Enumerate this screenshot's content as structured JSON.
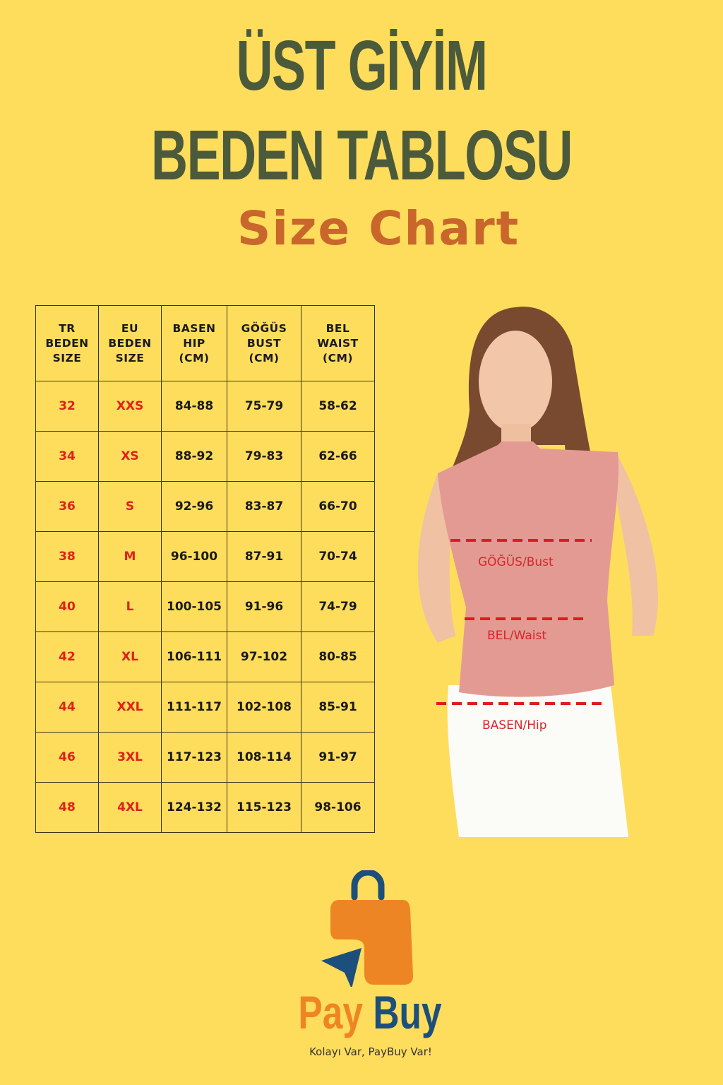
{
  "title": {
    "line1": "ÜST GİYİM",
    "line2": "BEDEN TABLOSU",
    "line3": "Size Chart"
  },
  "table": {
    "headers": [
      [
        "TR",
        "BEDEN",
        "SIZE"
      ],
      [
        "EU",
        "BEDEN",
        "SIZE"
      ],
      [
        "BASEN",
        "HIP",
        "(CM)"
      ],
      [
        "GÖĞÜS",
        "BUST",
        "(CM)"
      ],
      [
        "BEL",
        "WAIST",
        "(CM)"
      ]
    ],
    "rows": [
      [
        "32",
        "XXS",
        "84-88",
        "75-79",
        "58-62"
      ],
      [
        "34",
        "XS",
        "88-92",
        "79-83",
        "62-66"
      ],
      [
        "36",
        "S",
        "92-96",
        "83-87",
        "66-70"
      ],
      [
        "38",
        "M",
        "96-100",
        "87-91",
        "70-74"
      ],
      [
        "40",
        "L",
        "100-105",
        "91-96",
        "74-79"
      ],
      [
        "42",
        "XL",
        "106-111",
        "97-102",
        "80-85"
      ],
      [
        "44",
        "XXL",
        "111-117",
        "102-108",
        "85-91"
      ],
      [
        "46",
        "3XL",
        "117-123",
        "108-114",
        "91-97"
      ],
      [
        "48",
        "4XL",
        "124-132",
        "115-123",
        "98-106"
      ]
    ]
  },
  "measurements": {
    "bust": "GÖĞÜS/Bust",
    "waist": "BEL/Waist",
    "hip": "BASEN/Hip"
  },
  "logo": {
    "word1": "Pay",
    "word2": "Buy",
    "tagline": "Kolayı Var, PayBuy Var!"
  },
  "colors": {
    "background": "#fedd5c",
    "title": "#4b5a3b",
    "subtitle": "#c9662c",
    "size_red": "#e0201a",
    "logo_orange": "#ee8524",
    "logo_blue": "#1d4f7c"
  }
}
